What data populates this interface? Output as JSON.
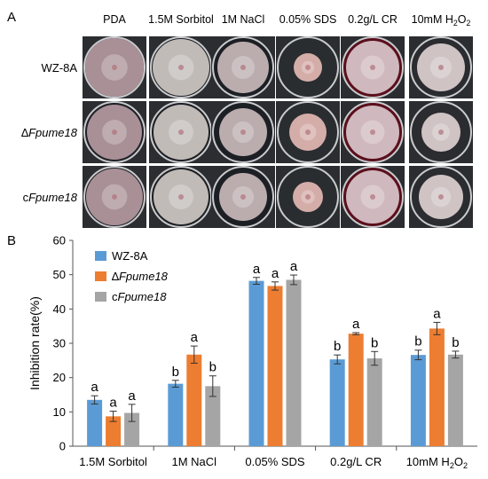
{
  "panel_a": {
    "label": "A",
    "column_headers": [
      "PDA",
      "1.5M Sorbitol",
      "1M NaCl",
      "0.05% SDS",
      "0.2g/L CR",
      "10mM H2O2"
    ],
    "row_labels": [
      "WZ-8A",
      "∆Fpume18",
      "cFpume18"
    ],
    "plate_medium_colors": [
      "#1f2126",
      "#1e2024",
      "#1c1f24",
      "#2a2d30",
      "#5a0f1c",
      "#2a2c2f"
    ],
    "colony_colors": [
      "#b49aa0",
      "#cfc9c6",
      "#c9b9bb",
      "#e3b8b4",
      "#d9c7cc",
      "#ddd0d1"
    ]
  },
  "panel_b": {
    "label": "B"
  },
  "chart_data": {
    "type": "bar",
    "categories": [
      "1.5M Sorbitol",
      "1M NaCl",
      "0.05% SDS",
      "0.2g/L CR",
      "10mM H2O2"
    ],
    "series": [
      {
        "name": "WZ-8A",
        "color": "#5b9bd5",
        "values": [
          13.5,
          18.2,
          48.2,
          25.3,
          26.6
        ],
        "errors": [
          1.2,
          1.0,
          1.0,
          1.3,
          1.4
        ],
        "significance": [
          "a",
          "b",
          "a",
          "b",
          "b"
        ]
      },
      {
        "name": "∆Fpume18",
        "color": "#ed7d31",
        "values": [
          8.7,
          26.7,
          46.7,
          32.8,
          34.3
        ],
        "errors": [
          1.5,
          2.5,
          1.2,
          0.3,
          1.8
        ],
        "significance": [
          "a",
          "a",
          "a",
          "a",
          "a"
        ]
      },
      {
        "name": "cFpume18",
        "color": "#a5a5a5",
        "values": [
          9.7,
          17.5,
          48.5,
          25.6,
          26.7
        ],
        "errors": [
          2.5,
          3.0,
          1.4,
          2.0,
          1.0
        ],
        "significance": [
          "a",
          "b",
          "a",
          "b",
          "b"
        ]
      }
    ],
    "ylabel": "Inhibition rate(%)",
    "xlabel": "",
    "ylim": [
      0,
      60
    ],
    "yticks": [
      0,
      10,
      20,
      30,
      40,
      50,
      60
    ],
    "legend_position": "top-left",
    "grid": false
  }
}
